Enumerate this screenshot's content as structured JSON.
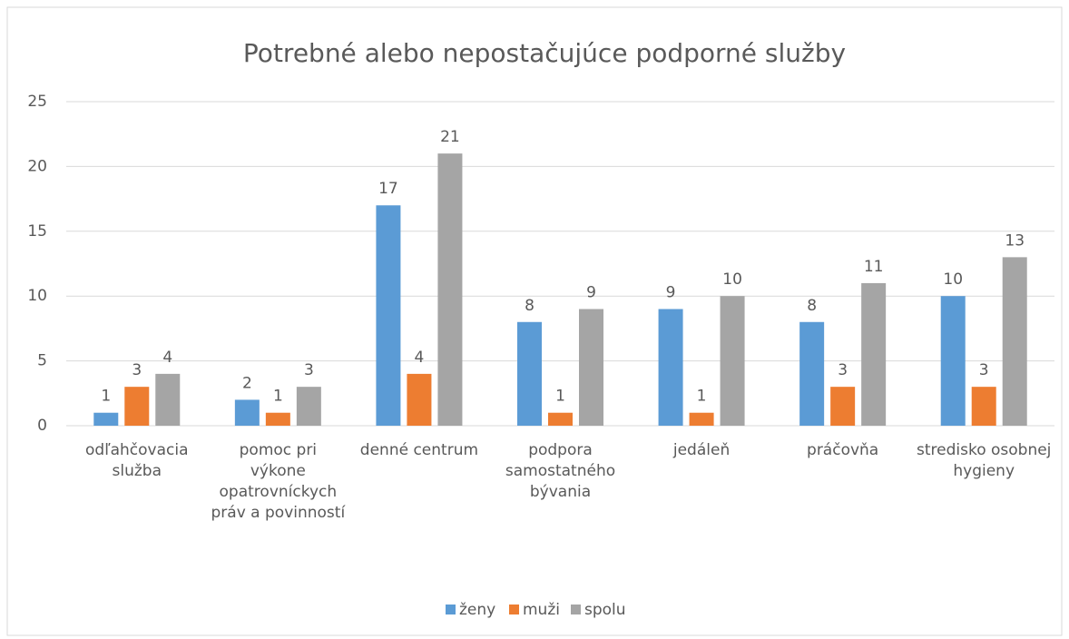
{
  "chart_data": {
    "type": "bar",
    "title": "Potrebné alebo nepostačujúce podporné služby",
    "categories": [
      "odľahčovacia služba",
      "pomoc pri výkone opatrovníckych práv a povinností",
      "denné centrum",
      "podpora samostatného bývania",
      "jedáleň",
      "práčovňa",
      "stredisko osobnej hygieny"
    ],
    "series": [
      {
        "name": "ženy",
        "color": "#5b9bd5",
        "values": [
          1,
          2,
          17,
          8,
          9,
          8,
          10
        ]
      },
      {
        "name": "muži",
        "color": "#ed7d31",
        "values": [
          3,
          1,
          4,
          1,
          1,
          3,
          3
        ]
      },
      {
        "name": "spolu",
        "color": "#a5a5a5",
        "values": [
          4,
          3,
          21,
          9,
          10,
          11,
          13
        ]
      }
    ],
    "ylim": [
      0,
      25
    ],
    "yticks": [
      0,
      5,
      10,
      15,
      20,
      25
    ],
    "grid": true,
    "legend": "bottom"
  }
}
